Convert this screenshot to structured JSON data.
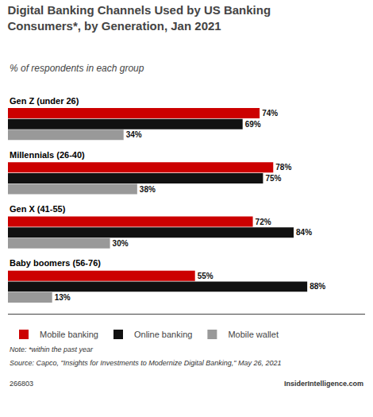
{
  "chart_data": {
    "type": "bar",
    "orientation": "horizontal",
    "title": "Digital Banking Channels Used by US Banking\nConsumers*, by Generation, Jan 2021",
    "subtitle": "% of respondents in each group",
    "categories": [
      "Gen Z (under 26)",
      "Millennials (26-40)",
      "Gen X (41-55)",
      "Baby boomers (56-76)"
    ],
    "series": [
      {
        "name": "Mobile banking",
        "color": "#cc0000",
        "values": [
          74,
          78,
          72,
          55
        ],
        "value_labels": [
          "74%",
          "78%",
          "72%",
          "55%"
        ]
      },
      {
        "name": "Online banking",
        "color": "#111111",
        "values": [
          69,
          75,
          84,
          88
        ],
        "value_labels": [
          "69%",
          "75%",
          "84%",
          "88%"
        ]
      },
      {
        "name": "Mobile wallet",
        "color": "#999999",
        "values": [
          34,
          38,
          30,
          13
        ],
        "value_labels": [
          "34%",
          "38%",
          "30%",
          "13%"
        ]
      }
    ],
    "xlim": [
      0,
      105
    ],
    "grid": false,
    "legend": "lower left",
    "data_labels": true,
    "tick_labels": false,
    "annotations": [
      "Note: *within the past year",
      "Source: Capco, \"Insights for Investments to Modernize Digital Banking,\" May 26, 2021",
      "266803",
      "InsiderIntelligence.com"
    ]
  }
}
